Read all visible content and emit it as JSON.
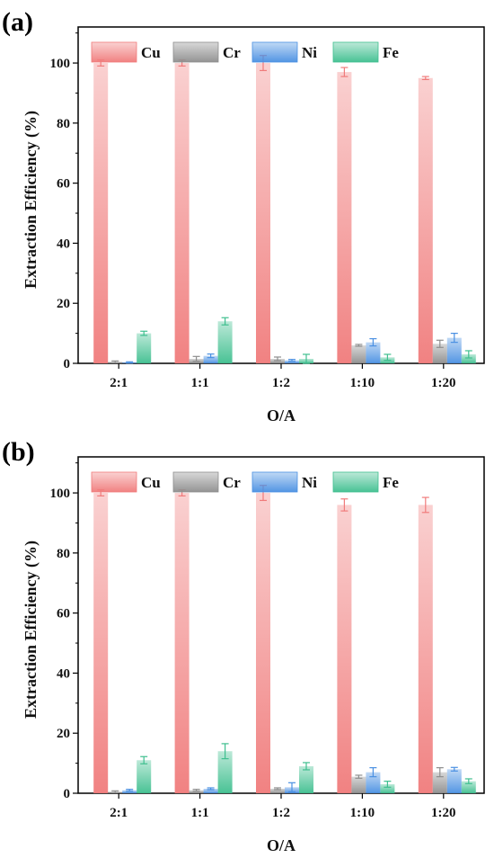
{
  "chart_data": [
    {
      "panel_label": "(a)",
      "type": "bar",
      "categories": [
        "2:1",
        "1:1",
        "1:2",
        "1:10",
        "1:20"
      ],
      "xlabel": "O/A",
      "ylabel": "Extraction Efficiency (%)",
      "ylim": [
        0,
        112
      ],
      "yticks": [
        0,
        20,
        40,
        60,
        80,
        100
      ],
      "legend": "top",
      "series": [
        {
          "name": "Cu",
          "color": "#f07b7b",
          "values": [
            100,
            100,
            100,
            97,
            95
          ],
          "errors": [
            1,
            1,
            2.5,
            1.5,
            0.5
          ]
        },
        {
          "name": "Cr",
          "color": "#8e8e8e",
          "values": [
            0.5,
            1.5,
            1.5,
            6,
            6.5
          ],
          "errors": [
            0.3,
            0.8,
            0.6,
            0.3,
            1.2
          ]
        },
        {
          "name": "Ni",
          "color": "#4a90e2",
          "values": [
            0.3,
            2.5,
            1,
            7,
            8.5
          ],
          "errors": [
            0.2,
            0.6,
            0.3,
            1.2,
            1.5
          ]
        },
        {
          "name": "Fe",
          "color": "#3fbf8f",
          "values": [
            10,
            14,
            1.5,
            2,
            3
          ],
          "errors": [
            0.7,
            1.2,
            1.5,
            1,
            1.2
          ]
        }
      ]
    },
    {
      "panel_label": "(b)",
      "type": "bar",
      "categories": [
        "2:1",
        "1:1",
        "1:2",
        "1:10",
        "1:20"
      ],
      "xlabel": "O/A",
      "ylabel": "Extraction Efficiency (%)",
      "ylim": [
        0,
        112
      ],
      "yticks": [
        0,
        20,
        40,
        60,
        80,
        100
      ],
      "legend": "top",
      "series": [
        {
          "name": "Cu",
          "color": "#f07b7b",
          "values": [
            100,
            100,
            100,
            96,
            96
          ],
          "errors": [
            1,
            1,
            2.5,
            2,
            2.5
          ]
        },
        {
          "name": "Cr",
          "color": "#8e8e8e",
          "values": [
            0.5,
            1,
            1.5,
            5.5,
            7
          ],
          "errors": [
            0.3,
            0.3,
            0.3,
            0.5,
            1.5
          ]
        },
        {
          "name": "Ni",
          "color": "#4a90e2",
          "values": [
            1,
            1.5,
            2,
            7,
            8
          ],
          "errors": [
            0.3,
            0.3,
            1.5,
            1.5,
            0.6
          ]
        },
        {
          "name": "Fe",
          "color": "#3fbf8f",
          "values": [
            11,
            14,
            9,
            3,
            4
          ],
          "errors": [
            1.2,
            2.5,
            1.2,
            1,
            0.8
          ]
        }
      ]
    }
  ]
}
